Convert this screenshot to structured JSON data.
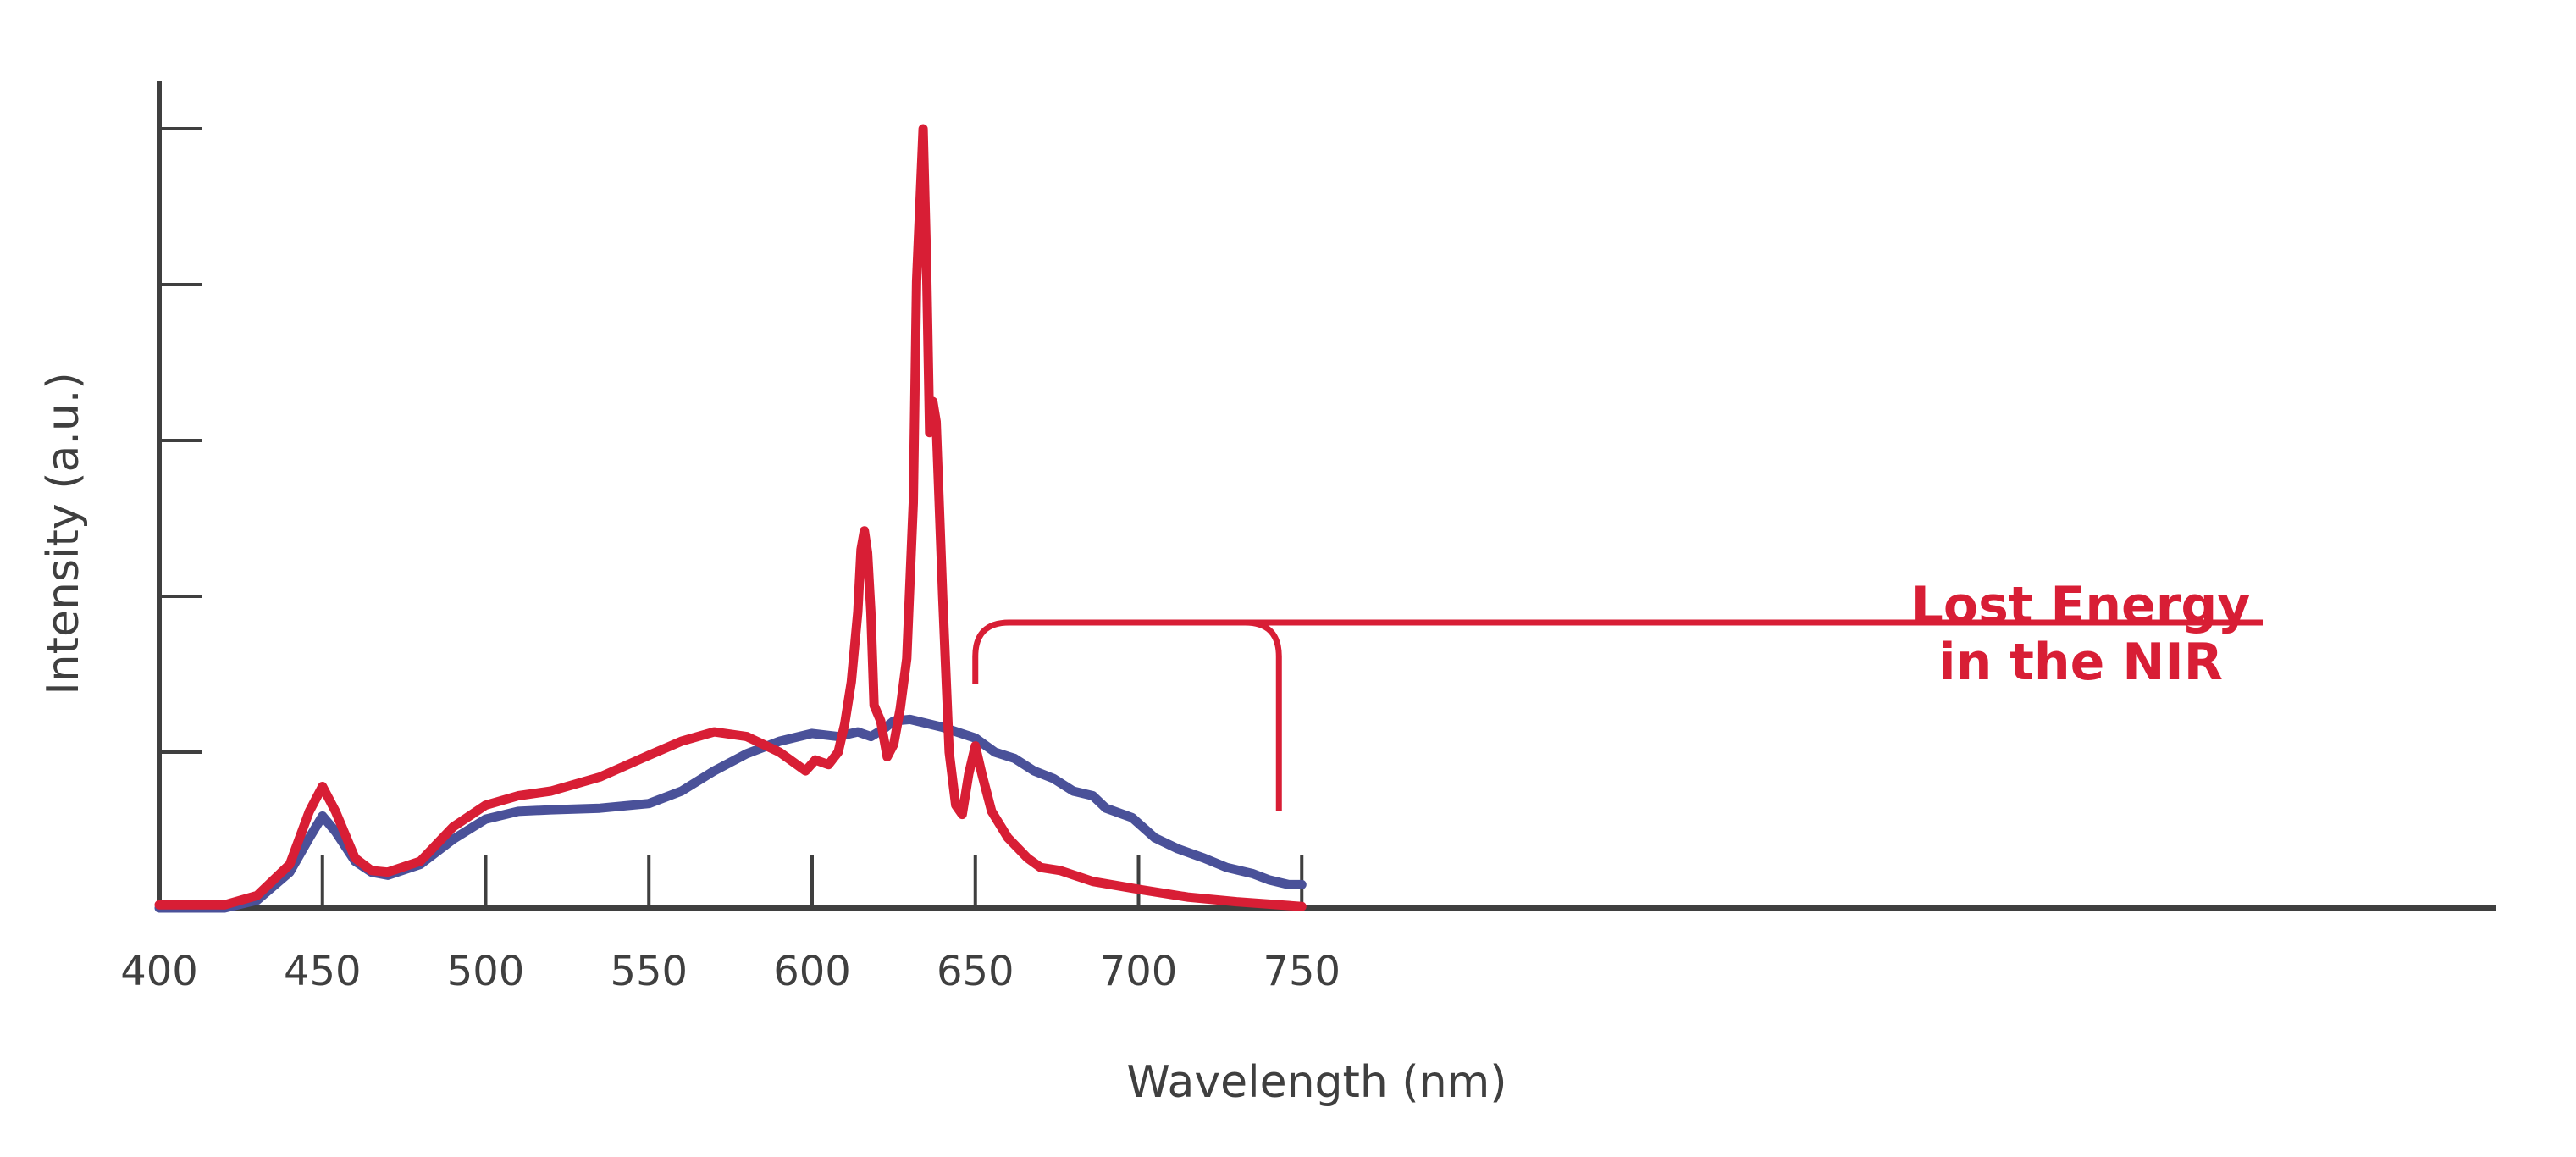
{
  "chart_data": {
    "type": "line",
    "xlabel": "Wavelength (nm)",
    "ylabel": "Intensity (a.u.)",
    "xlim": [
      400,
      760
    ],
    "ylim": [
      0,
      5
    ],
    "x_ticks": [
      400,
      450,
      500,
      550,
      600,
      650,
      700,
      750
    ],
    "y_ticks": [
      1,
      2,
      3,
      4,
      5
    ],
    "y_tick_labels_shown": false,
    "grid": false,
    "legend": "none",
    "series": [
      {
        "color": "#d81e35",
        "points": [
          [
            400,
            0.02
          ],
          [
            420,
            0.02
          ],
          [
            430,
            0.08
          ],
          [
            440,
            0.28
          ],
          [
            446,
            0.62
          ],
          [
            450,
            0.78
          ],
          [
            454,
            0.62
          ],
          [
            460,
            0.32
          ],
          [
            465,
            0.24
          ],
          [
            470,
            0.23
          ],
          [
            480,
            0.3
          ],
          [
            490,
            0.52
          ],
          [
            500,
            0.66
          ],
          [
            510,
            0.72
          ],
          [
            520,
            0.75
          ],
          [
            535,
            0.84
          ],
          [
            550,
            0.98
          ],
          [
            560,
            1.07
          ],
          [
            570,
            1.13
          ],
          [
            580,
            1.1
          ],
          [
            590,
            1.0
          ],
          [
            598,
            0.88
          ],
          [
            601,
            0.95
          ],
          [
            605,
            0.92
          ],
          [
            608,
            1.0
          ],
          [
            610,
            1.18
          ],
          [
            612,
            1.45
          ],
          [
            614,
            1.9
          ],
          [
            615,
            2.3
          ],
          [
            616,
            2.42
          ],
          [
            617,
            2.28
          ],
          [
            618,
            1.9
          ],
          [
            619,
            1.3
          ],
          [
            621,
            1.2
          ],
          [
            623,
            0.97
          ],
          [
            625,
            1.05
          ],
          [
            627,
            1.28
          ],
          [
            629,
            1.6
          ],
          [
            631,
            2.6
          ],
          [
            632,
            4.02
          ],
          [
            634,
            5.0
          ],
          [
            635,
            4.2
          ],
          [
            636,
            3.05
          ],
          [
            637,
            3.25
          ],
          [
            638,
            3.12
          ],
          [
            640,
            2.0
          ],
          [
            642,
            1.0
          ],
          [
            644,
            0.66
          ],
          [
            646,
            0.6
          ],
          [
            648,
            0.86
          ],
          [
            650,
            1.04
          ],
          [
            652,
            0.86
          ],
          [
            655,
            0.62
          ],
          [
            660,
            0.45
          ],
          [
            666,
            0.32
          ],
          [
            670,
            0.26
          ],
          [
            676,
            0.24
          ],
          [
            686,
            0.17
          ],
          [
            700,
            0.12
          ],
          [
            715,
            0.07
          ],
          [
            730,
            0.04
          ],
          [
            750,
            0.01
          ]
        ]
      },
      {
        "color": "#4a5199",
        "points": [
          [
            400,
            0.0
          ],
          [
            420,
            0.0
          ],
          [
            430,
            0.05
          ],
          [
            440,
            0.23
          ],
          [
            446,
            0.45
          ],
          [
            450,
            0.59
          ],
          [
            454,
            0.49
          ],
          [
            460,
            0.3
          ],
          [
            465,
            0.23
          ],
          [
            470,
            0.21
          ],
          [
            480,
            0.28
          ],
          [
            490,
            0.44
          ],
          [
            500,
            0.57
          ],
          [
            510,
            0.62
          ],
          [
            520,
            0.63
          ],
          [
            535,
            0.64
          ],
          [
            550,
            0.67
          ],
          [
            560,
            0.75
          ],
          [
            570,
            0.88
          ],
          [
            580,
            0.99
          ],
          [
            590,
            1.07
          ],
          [
            600,
            1.12
          ],
          [
            608,
            1.1
          ],
          [
            612,
            1.12
          ],
          [
            614,
            1.13
          ],
          [
            618,
            1.1
          ],
          [
            622,
            1.15
          ],
          [
            625,
            1.2
          ],
          [
            630,
            1.21
          ],
          [
            640,
            1.16
          ],
          [
            650,
            1.09
          ],
          [
            656,
            1.0
          ],
          [
            662,
            0.96
          ],
          [
            668,
            0.88
          ],
          [
            674,
            0.83
          ],
          [
            680,
            0.75
          ],
          [
            686,
            0.72
          ],
          [
            690,
            0.64
          ],
          [
            698,
            0.58
          ],
          [
            705,
            0.45
          ],
          [
            712,
            0.38
          ],
          [
            720,
            0.32
          ],
          [
            727,
            0.26
          ],
          [
            735,
            0.22
          ],
          [
            740,
            0.18
          ],
          [
            746,
            0.15
          ],
          [
            750,
            0.15
          ]
        ]
      }
    ],
    "annotations": [
      {
        "lines": [
          "Lost Energy",
          "in the NIR"
        ],
        "x_range": [
          650,
          743
        ],
        "color": "#d81e35"
      }
    ]
  }
}
